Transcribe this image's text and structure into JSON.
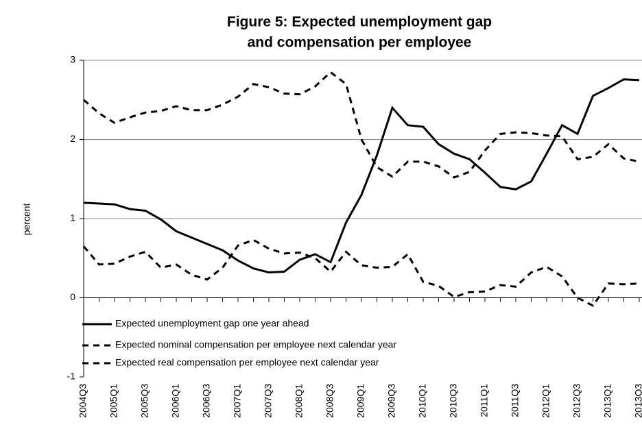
{
  "chart_data": {
    "type": "line",
    "title": [
      "Figure 5: Expected unemployment gap",
      "and compensation per employee"
    ],
    "y_label": "percent",
    "categories": [
      "2004Q3",
      null,
      "2005Q1",
      null,
      "2005Q3",
      null,
      "2006Q1",
      null,
      "2006Q3",
      null,
      "2007Q1",
      null,
      "2007Q3",
      null,
      "2008Q1",
      null,
      "2008Q3",
      null,
      "2009Q1",
      null,
      "2009Q3",
      null,
      "2010Q1",
      null,
      "2010Q3",
      null,
      "2011Q1",
      null,
      "2011Q3",
      null,
      "2012Q1",
      null,
      "2012Q3",
      null,
      "2013Q1",
      null,
      "2013Q3"
    ],
    "series": [
      {
        "name": "Expected unemployment gap one year ahead",
        "color": "#000000",
        "dashed": false,
        "values": [
          1.2,
          1.19,
          1.18,
          1.12,
          1.1,
          0.99,
          0.84,
          0.76,
          0.68,
          0.6,
          0.47,
          0.37,
          0.32,
          0.33,
          0.48,
          0.55,
          0.45,
          0.95,
          1.3,
          1.8,
          2.4,
          2.18,
          2.16,
          1.94,
          1.82,
          1.75,
          1.58,
          1.4,
          1.37,
          1.47,
          1.82,
          2.18,
          2.07,
          2.55,
          2.65,
          2.76,
          2.75
        ]
      },
      {
        "name": "Expected nominal compensation per employee next calendar year",
        "color": "#000000",
        "dashed": true,
        "values": [
          2.5,
          2.33,
          2.21,
          2.28,
          2.34,
          2.36,
          2.42,
          2.37,
          2.37,
          2.44,
          2.54,
          2.7,
          2.66,
          2.58,
          2.57,
          2.67,
          2.85,
          2.7,
          2.0,
          1.65,
          1.53,
          1.72,
          1.72,
          1.66,
          1.52,
          1.59,
          1.86,
          2.07,
          2.09,
          2.08,
          2.05,
          2.04,
          1.75,
          1.78,
          1.94,
          1.76,
          1.72
        ]
      },
      {
        "name": "Expected real compensation per employee next calendar year",
        "color": "#000000",
        "dashed": true,
        "values": [
          0.65,
          0.42,
          0.43,
          0.52,
          0.58,
          0.38,
          0.42,
          0.29,
          0.23,
          0.38,
          0.66,
          0.73,
          0.62,
          0.56,
          0.57,
          0.5,
          0.33,
          0.58,
          0.41,
          0.38,
          0.39,
          0.55,
          0.2,
          0.15,
          0.01,
          0.07,
          0.08,
          0.16,
          0.14,
          0.32,
          0.39,
          0.27,
          0.0,
          -0.1,
          0.18,
          0.17,
          0.18
        ]
      }
    ],
    "ylim": [
      -1,
      3
    ],
    "yticks": [
      -1,
      0,
      1,
      2,
      3
    ],
    "grid": true,
    "legend": "lower left"
  }
}
